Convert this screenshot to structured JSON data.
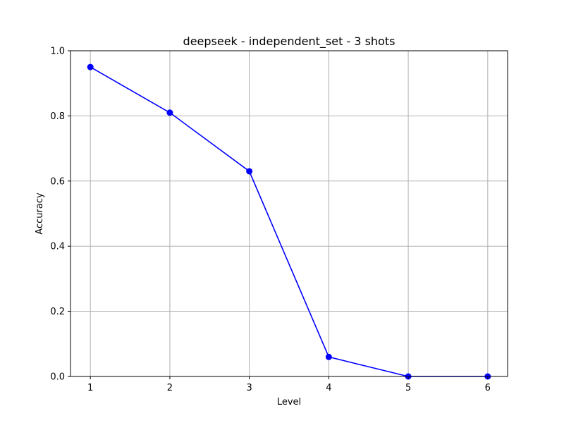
{
  "chart_data": {
    "type": "line",
    "title": "deepseek - independent_set - 3 shots",
    "xlabel": "Level",
    "ylabel": "Accuracy",
    "x": [
      1,
      2,
      3,
      4,
      5,
      6
    ],
    "xticks": [
      "1",
      "2",
      "3",
      "4",
      "5",
      "6"
    ],
    "xlim": [
      0.75,
      6.25
    ],
    "ylim": [
      0.0,
      1.0
    ],
    "yticks": [
      "0.0",
      "0.2",
      "0.4",
      "0.6",
      "0.8",
      "1.0"
    ],
    "grid": true,
    "series": [
      {
        "values": [
          0.95,
          0.81,
          0.63,
          0.06,
          0.0,
          0.0
        ],
        "color": "#0000ff",
        "marker": "circle"
      }
    ]
  }
}
